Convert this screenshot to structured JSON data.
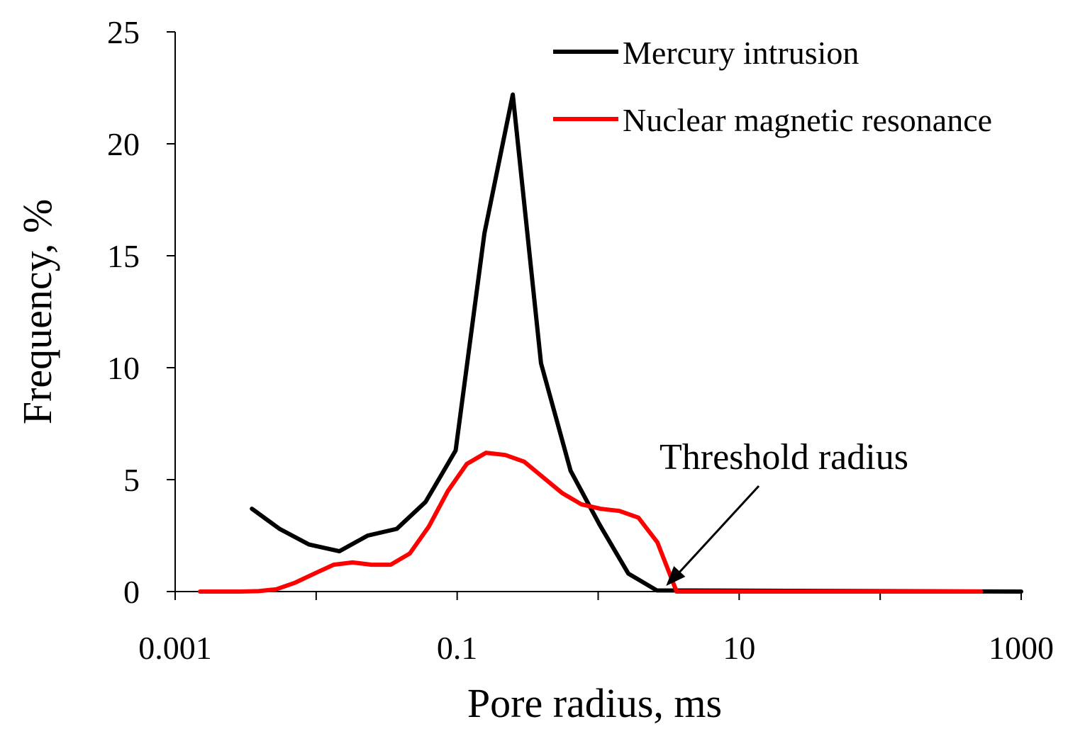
{
  "chart_data": {
    "type": "line",
    "title": "",
    "xlabel": "Pore radius, ms",
    "ylabel": "Frequency, %",
    "xscale": "log",
    "xlim": [
      0.001,
      1000
    ],
    "ylim": [
      0,
      25
    ],
    "xticks": [
      0.001,
      0.01,
      0.1,
      1,
      10,
      100,
      1000
    ],
    "xtick_labels": [
      "0.001",
      "0.1",
      "10",
      "1000"
    ],
    "yticks": [
      0,
      5,
      10,
      15,
      20,
      25
    ],
    "ytick_labels": [
      "0",
      "5",
      "10",
      "15",
      "20",
      "25"
    ],
    "grid": false,
    "legend_position": "top-right",
    "series": [
      {
        "name": "Mercury intrusion",
        "color": "#000000",
        "x": [
          0.0035,
          0.0055,
          0.0089,
          0.0146,
          0.0232,
          0.0373,
          0.0596,
          0.0975,
          0.156,
          0.248,
          0.393,
          0.637,
          1.021,
          1.637,
          2.61,
          1000
        ],
        "y": [
          3.7,
          2.8,
          2.1,
          1.8,
          2.5,
          2.8,
          4.0,
          6.3,
          16.0,
          22.2,
          10.2,
          5.4,
          3.0,
          0.8,
          0.05,
          0.0
        ]
      },
      {
        "name": "Nuclear magnetic resonance",
        "color": "#ff0000",
        "x": [
          0.0015,
          0.0021,
          0.0029,
          0.0039,
          0.0052,
          0.0071,
          0.0097,
          0.0133,
          0.0181,
          0.0247,
          0.0338,
          0.0461,
          0.0629,
          0.0861,
          0.117,
          0.16,
          0.219,
          0.299,
          0.407,
          0.556,
          0.759,
          1.037,
          1.415,
          1.93,
          2.63,
          3.6,
          10,
          100,
          520
        ],
        "y": [
          0.0,
          0.0,
          0.0,
          0.02,
          0.1,
          0.4,
          0.8,
          1.2,
          1.3,
          1.2,
          1.2,
          1.7,
          2.9,
          4.5,
          5.7,
          6.2,
          6.1,
          5.8,
          5.1,
          4.4,
          3.9,
          3.7,
          3.6,
          3.3,
          2.2,
          0.0,
          0.0,
          0.0,
          0.0
        ]
      }
    ],
    "annotations": [
      {
        "text": "Threshold radius",
        "points_to_x": 2.7,
        "points_to_y": 0
      }
    ]
  }
}
